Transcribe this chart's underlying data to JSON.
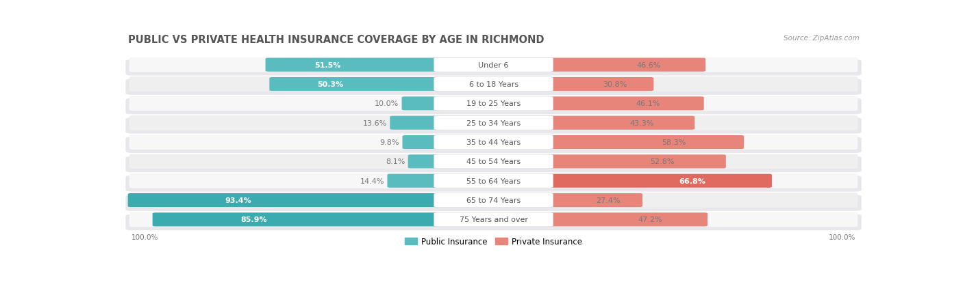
{
  "title": "PUBLIC VS PRIVATE HEALTH INSURANCE COVERAGE BY AGE IN RICHMOND",
  "source": "Source: ZipAtlas.com",
  "categories": [
    "Under 6",
    "6 to 18 Years",
    "19 to 25 Years",
    "25 to 34 Years",
    "35 to 44 Years",
    "45 to 54 Years",
    "55 to 64 Years",
    "65 to 74 Years",
    "75 Years and over"
  ],
  "public_values": [
    51.5,
    50.3,
    10.0,
    13.6,
    9.8,
    8.1,
    14.4,
    93.4,
    85.9
  ],
  "private_values": [
    46.6,
    30.8,
    46.1,
    43.3,
    58.3,
    52.8,
    66.8,
    27.4,
    47.2
  ],
  "public_color": "#5bbcbf",
  "private_color": "#e8857a",
  "public_color_65plus": "#3aabae",
  "private_color_55to64": "#e06a5f",
  "row_bg_color": "#e8e8ec",
  "row_inner_color_odd": "#f7f7f8",
  "row_inner_color_even": "#efefef",
  "title_color": "#555555",
  "label_color": "#555555",
  "value_color_inside": "#ffffff",
  "value_color_outside": "#777777",
  "title_fontsize": 10.5,
  "label_fontsize": 8.0,
  "value_fontsize": 8.0,
  "source_fontsize": 7.5,
  "legend_public": "Public Insurance",
  "legend_private": "Private Insurance"
}
